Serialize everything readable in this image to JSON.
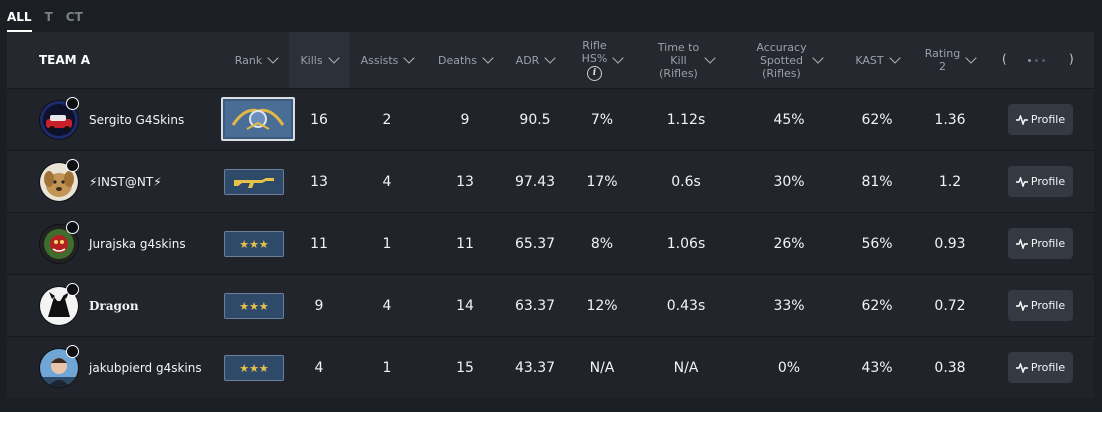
{
  "tabs": [
    "ALL",
    "T",
    "CT"
  ],
  "team_name": "TEAM A",
  "columns": {
    "rank": "Rank",
    "kills": "Kills",
    "assists": "Assists",
    "deaths": "Deaths",
    "adr": "ADR",
    "hs_l1": "Rifle",
    "hs_l2": "HS%",
    "ttk_l1": "Time to",
    "ttk_l2": "Kill",
    "ttk_l3": "(Rifles)",
    "acc_l1": "Accuracy",
    "acc_l2": "Spotted",
    "acc_l3": "(Rifles)",
    "kast": "KAST",
    "rating_l1": "Rating",
    "rating_l2": "2"
  },
  "info_icon": "i",
  "pager": {
    "left": "(",
    "right": ")"
  },
  "rank_icons": {
    "badge": "global-elite-icon",
    "ak": "ak47-icon",
    "stars": "★★★"
  },
  "profile_label": "Profile",
  "players": [
    {
      "name": "Sergito G4Skins",
      "rank": "global-elite-icon",
      "kills": "16",
      "assists": "2",
      "deaths": "9",
      "adr": "90.5",
      "hs": "7%",
      "ttk": "1.12s",
      "acc": "45%",
      "kast": "62%",
      "rating": "1.36"
    },
    {
      "name": "⚡INST@NT⚡",
      "rank": "ak47-icon",
      "kills": "13",
      "assists": "4",
      "deaths": "13",
      "adr": "97.43",
      "hs": "17%",
      "ttk": "0.6s",
      "acc": "30%",
      "kast": "81%",
      "rating": "1.2"
    },
    {
      "name": "Jurajska g4skins",
      "rank": "stars-icon",
      "kills": "11",
      "assists": "1",
      "deaths": "11",
      "adr": "65.37",
      "hs": "8%",
      "ttk": "1.06s",
      "acc": "26%",
      "kast": "56%",
      "rating": "0.93"
    },
    {
      "name": "Dragon",
      "rank": "stars-icon",
      "kills": "9",
      "assists": "4",
      "deaths": "14",
      "adr": "63.37",
      "hs": "12%",
      "ttk": "0.43s",
      "acc": "33%",
      "kast": "62%",
      "rating": "0.72"
    },
    {
      "name": "jakubpierd g4skins",
      "rank": "stars-icon",
      "kills": "4",
      "assists": "1",
      "deaths": "15",
      "adr": "43.37",
      "hs": "N/A",
      "ttk": "N/A",
      "acc": "0%",
      "kast": "43%",
      "rating": "0.38"
    }
  ],
  "colors": {
    "background": "#1b1e23",
    "header": "#25292f",
    "rank_badge": "#2f4a69",
    "star_gold": "#e7c24b",
    "profile_button": "#353a42"
  }
}
